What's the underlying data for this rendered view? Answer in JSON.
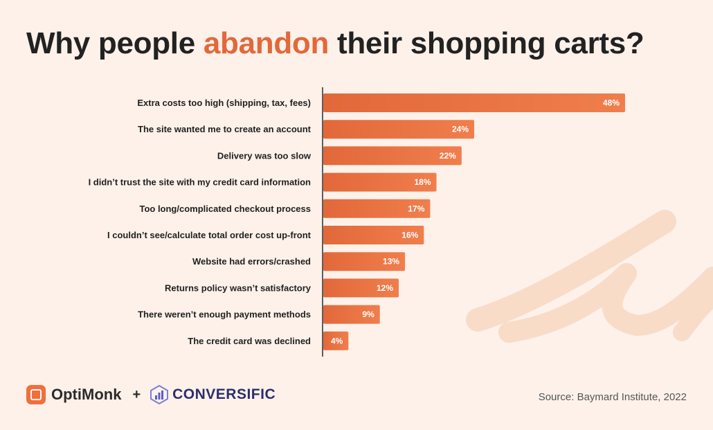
{
  "title": {
    "before": "Why people ",
    "accent": "abandon",
    "after": " their shopping carts?"
  },
  "colors": {
    "background": "#fdf1ea",
    "bar_start": "#e2683a",
    "bar_end": "#f07e4c",
    "accent": "#e2683a",
    "brush": "#f8dcc8"
  },
  "chart_data": {
    "type": "bar",
    "orientation": "horizontal",
    "categories": [
      "Extra costs too high (shipping, tax, fees)",
      "The site wanted me to create an account",
      "Delivery was too slow",
      "I didn’t trust the site with my credit card information",
      "Too long/complicated checkout process",
      "I couldn’t see/calculate total order cost up-front",
      "Website had errors/crashed",
      "Returns policy wasn’t satisfactory",
      "There weren’t enough payment methods",
      "The credit card was declined"
    ],
    "values": [
      48,
      24,
      22,
      18,
      17,
      16,
      13,
      12,
      9,
      4
    ],
    "value_labels": [
      "48%",
      "24%",
      "22%",
      "18%",
      "17%",
      "16%",
      "13%",
      "12%",
      "9%",
      "4%"
    ],
    "unit": "%",
    "xlim": [
      0,
      48
    ],
    "grid": false,
    "legend": "none"
  },
  "footer": {
    "brand_primary": "OptiMonk",
    "plus": "+",
    "brand_secondary": "CONVERSIFIC",
    "source": "Source: Baymard Institute, 2022",
    "icons": [
      "optimonk-logo-icon",
      "conversific-logo-icon"
    ]
  }
}
